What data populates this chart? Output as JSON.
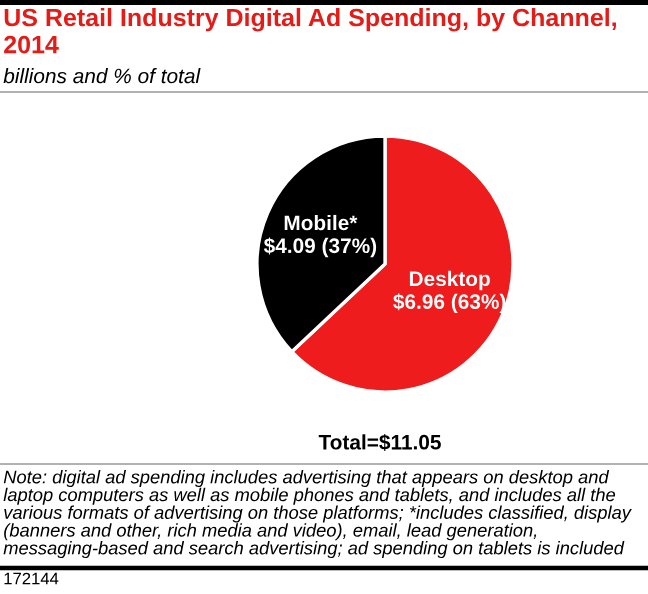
{
  "chart_data": {
    "type": "pie",
    "title": "US Retail Industry Digital Ad Spending, by Channel, 2014",
    "subtitle": "billions and % of total",
    "categories": [
      "Desktop",
      "Mobile*"
    ],
    "values": [
      6.96,
      4.09
    ],
    "value_labels": [
      "$6.96 (63%)",
      "$4.09 (37%)"
    ],
    "colors": [
      "#ee1c1c",
      "#000000"
    ],
    "annotations": [
      "Total=$11.05",
      "Note: digital ad spending includes advertising that appears on desktop and laptop computers as well as mobile phones and tablets, and includes all the various formats of advertising on those platforms; *includes classified, display (banners and other, rich media and video), email, lead generation, messaging-based and search advertising; ad spending on tablets is included",
      "172144"
    ],
    "legend": false
  }
}
